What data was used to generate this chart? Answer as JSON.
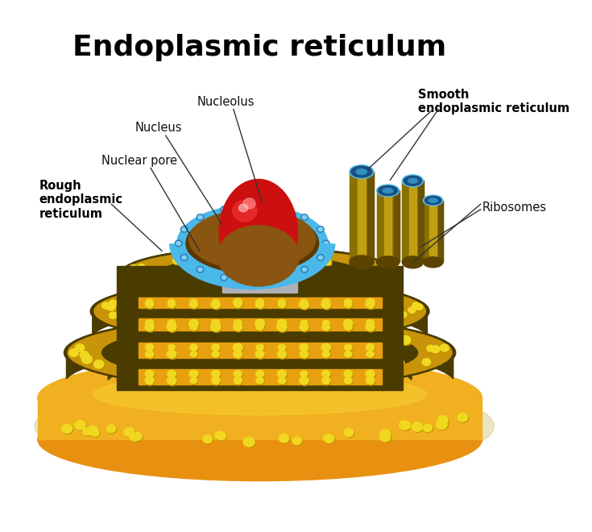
{
  "title": "Endoplasmic reticulum",
  "title_fontsize": 26,
  "title_fontweight": "bold",
  "bg_color": "#ffffff",
  "labels": {
    "nucleolus": "Nucleolus",
    "nucleus": "Nucleus",
    "nuclear_pore": "Nuclear pore",
    "rough_er": "Rough\nendoplasmic\nreticulum",
    "smooth_er": "Smooth\nendoplasmic reticulum",
    "ribosomes": "Ribosomes"
  },
  "colors": {
    "mem_dark": "#4a3c00",
    "mem_gold": "#c8940a",
    "mem_bright": "#f0b818",
    "mem_lumen": "#e8a010",
    "mem_orange": "#d08010",
    "ribosome_y": "#f0d820",
    "ribosome_s": "#c09000",
    "nuc_dark": "#5a3800",
    "nuc_mid": "#8a5510",
    "nuc_light": "#b07030",
    "blue_ring": "#4ab8e8",
    "blue_dark": "#2878b0",
    "blue_light": "#80d0f8",
    "nucl_red": "#cc1010",
    "nucl_bright": "#ee3030",
    "nucl_hi": "#ff6060",
    "tube_outer": "#8a7000",
    "tube_mid": "#c0a010",
    "tube_hi": "#e8c030",
    "tube_cap": "#5abde8",
    "tube_cap_dark": "#1a5080",
    "tube_inner": "#3090c0",
    "base_gold": "#f0b020",
    "base_orange": "#e89010",
    "base_dark": "#3a2c00"
  }
}
